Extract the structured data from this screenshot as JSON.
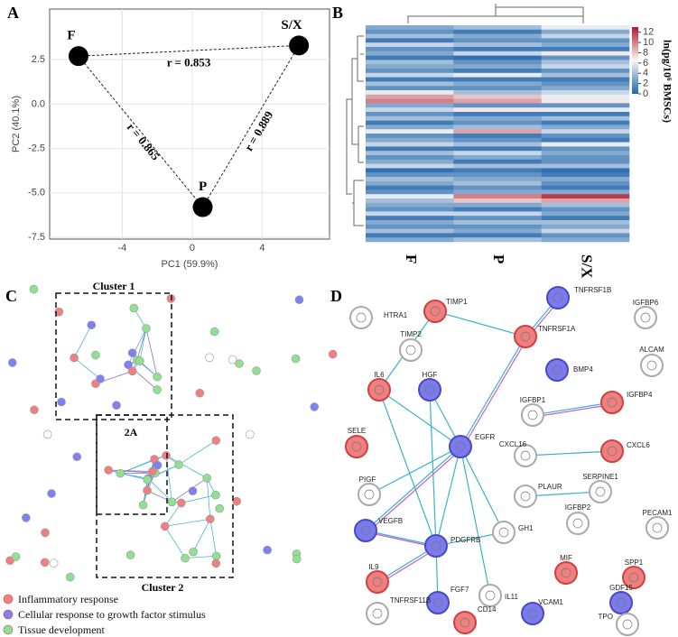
{
  "panel_labels": [
    "A",
    "B",
    "C",
    "D"
  ],
  "chart_data": [
    {
      "type": "scatter",
      "labels": [
        "F",
        "P",
        "S/X"
      ],
      "x": [
        -6.5,
        0.6,
        6.1
      ],
      "y": [
        2.7,
        -5.8,
        3.3
      ],
      "color": "#000000",
      "annotations": [
        "r = 0.853",
        "r = 0.865",
        "r = 0.889"
      ],
      "x_label": "PC1 (59.9%)",
      "y_label": "PC2 (40.1%)",
      "xlim": [
        -8.15,
        7.85
      ],
      "ylim": [
        -7.6,
        5.35
      ],
      "xticks": [
        -4,
        0,
        4
      ],
      "yticks": [
        2.5,
        {
          "value": 0,
          "label": "0.0"
        },
        -2.5,
        {
          "value": -5,
          "label": "-5.0"
        },
        -7.5
      ],
      "grid": true
    },
    {
      "type": "heatmap",
      "categories": [
        "F",
        "P",
        "S/X"
      ],
      "colorbar_label": "ln(pg/10⁶ BMSCs)",
      "zlim": [
        0,
        13
      ],
      "zticks": [
        0,
        2,
        4,
        6,
        8,
        10,
        12
      ],
      "colors": [
        "#2166ac",
        "#f7f7f7",
        "#b2182b"
      ],
      "matrix": [
        [
          3,
          4,
          6
        ],
        [
          2,
          1,
          3
        ],
        [
          4,
          3,
          5
        ],
        [
          1,
          2,
          2
        ],
        [
          5,
          4,
          3
        ],
        [
          2,
          1,
          1
        ],
        [
          3,
          5,
          7
        ],
        [
          1,
          0.5,
          2
        ],
        [
          4,
          2,
          4
        ],
        [
          3,
          3,
          5
        ],
        [
          2,
          1,
          2
        ],
        [
          5,
          6,
          4
        ],
        [
          1,
          1,
          1
        ],
        [
          4,
          3,
          2
        ],
        [
          2,
          2,
          3
        ],
        [
          6,
          4,
          5
        ],
        [
          9,
          8,
          6
        ],
        [
          10,
          9,
          7
        ],
        [
          3,
          2,
          2
        ],
        [
          5,
          7,
          6
        ],
        [
          2,
          1,
          1
        ],
        [
          4,
          3,
          4
        ],
        [
          1,
          2,
          1
        ],
        [
          3,
          4,
          3
        ],
        [
          6,
          9,
          5
        ],
        [
          2,
          1,
          2
        ],
        [
          3,
          2,
          1
        ],
        [
          5,
          4,
          6
        ],
        [
          1,
          1,
          2
        ],
        [
          4,
          5,
          3
        ],
        [
          2,
          3,
          2
        ],
        [
          3,
          1,
          2
        ],
        [
          5,
          4,
          4
        ],
        [
          0.5,
          1,
          0.5
        ],
        [
          2,
          2,
          1
        ],
        [
          4,
          3,
          3
        ],
        [
          3,
          4,
          2
        ],
        [
          1,
          2,
          1
        ],
        [
          2,
          3,
          3
        ],
        [
          6,
          10,
          12
        ],
        [
          4,
          8,
          9
        ],
        [
          3,
          3,
          4
        ],
        [
          2,
          1,
          2
        ],
        [
          5,
          5,
          3
        ],
        [
          1,
          2,
          1
        ],
        [
          3,
          4,
          4
        ],
        [
          2,
          2,
          3
        ],
        [
          4,
          3,
          5
        ],
        [
          1,
          1,
          2
        ],
        [
          3,
          4,
          3
        ]
      ]
    }
  ],
  "network_c": {
    "clusters": [
      "Cluster 1",
      "Cluster 2",
      "2A"
    ],
    "legend": [
      {
        "name": "Inflammatory response",
        "color": "#f08080"
      },
      {
        "name": "Cellular response to growth factor stimulus",
        "color": "#8080f0"
      },
      {
        "name": "Tissue development",
        "color": "#90e090"
      }
    ]
  },
  "network_d": {
    "nodes": [
      {
        "label": "HTRA1",
        "color": "gray"
      },
      {
        "label": "TIMP1",
        "color": "red"
      },
      {
        "label": "TIMP2",
        "color": "gray"
      },
      {
        "label": "TNFRSF1B",
        "color": "blue"
      },
      {
        "label": "TNFRSF1A",
        "color": "red"
      },
      {
        "label": "IGFBP6",
        "color": "gray"
      },
      {
        "label": "BMP4",
        "color": "blue"
      },
      {
        "label": "ALCAM",
        "color": "gray"
      },
      {
        "label": "IL6",
        "color": "red"
      },
      {
        "label": "HGF",
        "color": "blue"
      },
      {
        "label": "IGFBP1",
        "color": "gray"
      },
      {
        "label": "IGFBP4",
        "color": "red"
      },
      {
        "label": "CXCL6",
        "color": "red"
      },
      {
        "label": "CXCL16",
        "color": "gray"
      },
      {
        "label": "SELE",
        "color": "red"
      },
      {
        "label": "EGFR",
        "color": "blue"
      },
      {
        "label": "SERPINE1",
        "color": "gray"
      },
      {
        "label": "PIGF",
        "color": "gray"
      },
      {
        "label": "PLAUR",
        "color": "gray"
      },
      {
        "label": "PECAM1",
        "color": "gray"
      },
      {
        "label": "IGFBP2",
        "color": "gray"
      },
      {
        "label": "VEGFB",
        "color": "blue"
      },
      {
        "label": "GH1",
        "color": "gray"
      },
      {
        "label": "PDGFRB",
        "color": "blue"
      },
      {
        "label": "SPP1",
        "color": "red"
      },
      {
        "label": "IL9",
        "color": "red"
      },
      {
        "label": "MIF",
        "color": "red"
      },
      {
        "label": "IL11",
        "color": "gray"
      },
      {
        "label": "FGF7",
        "color": "blue"
      },
      {
        "label": "TNFRSF11B",
        "color": "gray"
      },
      {
        "label": "GDF15",
        "color": "blue"
      },
      {
        "label": "VCAM1",
        "color": "blue"
      },
      {
        "label": "CD14",
        "color": "red"
      },
      {
        "label": "TPO",
        "color": "gray"
      }
    ]
  }
}
